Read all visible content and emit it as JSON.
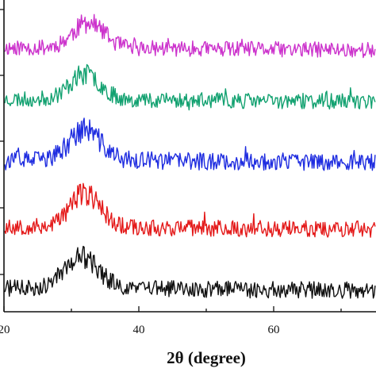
{
  "chart_data": {
    "type": "line",
    "xlabel": "2θ (degree)",
    "ylabel": "",
    "xlim": [
      20,
      85
    ],
    "x_ticks": [
      20,
      40,
      60
    ],
    "x_tick_labels": [
      "20",
      "40",
      "60"
    ],
    "y_axis": "stacked offsets, unlabeled",
    "grid": false,
    "legend": "none",
    "series": [
      {
        "color": "#cc33cc",
        "center": 32.5,
        "peak_height": 0.45,
        "peak_width": 3.2,
        "baseline": 0.12,
        "noise": 0.14,
        "seed": 11
      },
      {
        "color": "#12a170",
        "center": 32.0,
        "peak_height": 0.45,
        "peak_width": 3.2,
        "baseline": 0.12,
        "noise": 0.14,
        "seed": 23
      },
      {
        "color": "#1f2de0",
        "center": 32.0,
        "peak_height": 0.55,
        "peak_width": 3.2,
        "baseline": 0.14,
        "noise": 0.16,
        "seed": 37
      },
      {
        "color": "#e41a1a",
        "center": 32.0,
        "peak_height": 0.6,
        "peak_width": 3.2,
        "baseline": 0.12,
        "noise": 0.15,
        "seed": 53
      },
      {
        "color": "#111111",
        "center": 31.5,
        "peak_height": 0.55,
        "peak_width": 3.6,
        "baseline": 0.12,
        "noise": 0.15,
        "seed": 71
      }
    ]
  }
}
